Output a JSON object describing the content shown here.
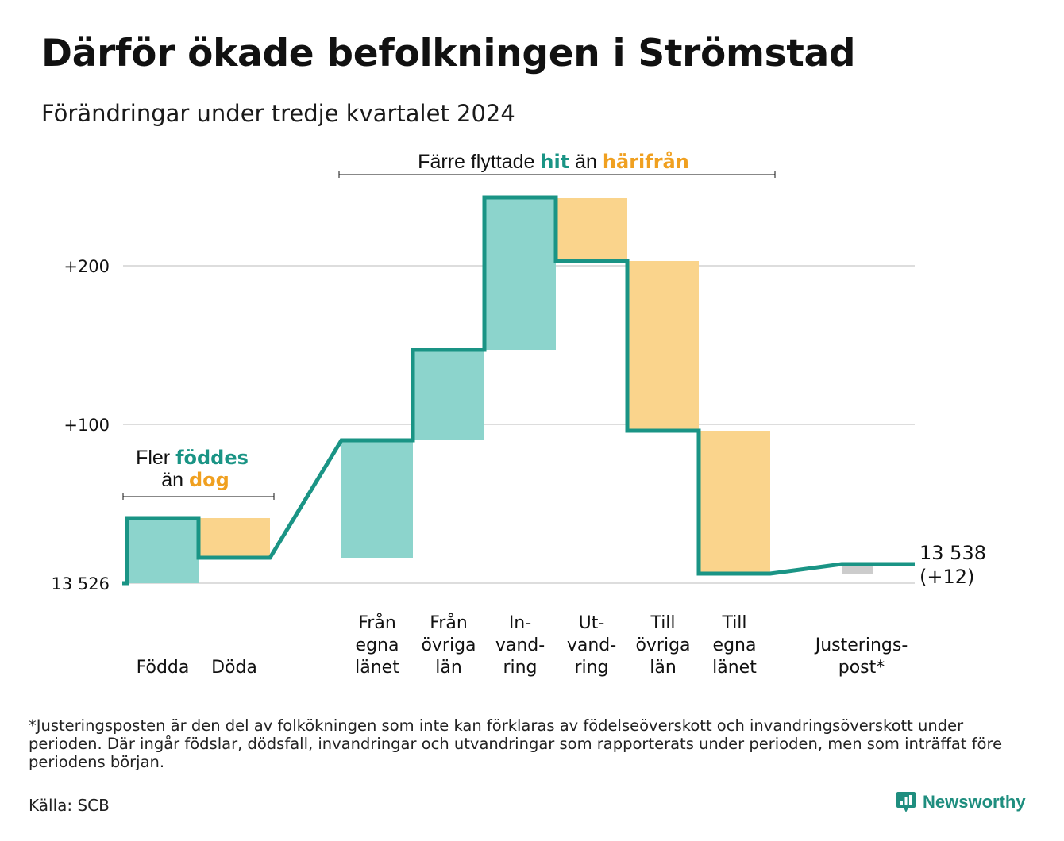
{
  "title": "Därför ökade befolkningen i Strömstad",
  "subtitle": "Förändringar under tredje kvartalet 2024",
  "colors": {
    "inflow": "#8cd4cc",
    "outflow": "#fad48c",
    "adjustment": "#cccccc",
    "line": "#1a9485",
    "teal_text": "#1a9485",
    "orange_text": "#f0a020",
    "grid": "#dddddd"
  },
  "chart_data": {
    "type": "waterfall",
    "title": "Därför ökade befolkningen i Strömstad",
    "subtitle": "Förändringar under tredje kvartalet 2024",
    "start_value": 13526,
    "end_value": 13538,
    "y_ticks": [
      {
        "value": 0,
        "label": "13 526"
      },
      {
        "value": 100,
        "label": "+100"
      },
      {
        "value": 200,
        "label": "+200"
      }
    ],
    "grid": true,
    "steps": [
      {
        "lines": [
          "Födda"
        ],
        "change": 41,
        "kind": "in",
        "gap_after": false
      },
      {
        "lines": [
          "Döda"
        ],
        "change": -25,
        "kind": "out",
        "gap_after": true
      },
      {
        "lines": [
          "Från",
          "egna",
          "länet"
        ],
        "change": 74,
        "kind": "in",
        "gap_after": false
      },
      {
        "lines": [
          "Från",
          "övriga",
          "län"
        ],
        "change": 57,
        "kind": "in",
        "gap_after": false
      },
      {
        "lines": [
          "In-",
          "vand-",
          "ring"
        ],
        "change": 96,
        "kind": "in",
        "gap_after": false
      },
      {
        "lines": [
          "Ut-",
          "vand-",
          "ring"
        ],
        "change": -40,
        "kind": "out",
        "gap_after": false
      },
      {
        "lines": [
          "Till",
          "övriga",
          "län"
        ],
        "change": -107,
        "kind": "out",
        "gap_after": false
      },
      {
        "lines": [
          "Till",
          "egna",
          "länet"
        ],
        "change": -90,
        "kind": "out",
        "gap_after": true
      },
      {
        "lines": [
          "Justerings-",
          "post*"
        ],
        "change": 6,
        "kind": "adjust",
        "gap_after": false
      }
    ],
    "end_label": [
      "13 538",
      "(+12)"
    ],
    "annotations": {
      "births": {
        "line1": [
          "Fler ",
          "föddes"
        ],
        "line2": [
          "än ",
          "dog"
        ]
      },
      "migration": {
        "parts": [
          "Färre flyttade ",
          "hit",
          " än ",
          "härifrån"
        ]
      }
    }
  },
  "footnote": "*Justeringsposten är den del av folkökningen som inte kan förklaras av födelseöverskott och invandringsöverskott under perioden. Där ingår födslar, dödsfall, invandringar och utvandringar som rapporterats under perioden, men som inträffat före periodens början.",
  "source": "Källa: SCB",
  "brand": {
    "name": "Newsworthy",
    "icon": "bar-chart-speech-bubble-icon"
  }
}
